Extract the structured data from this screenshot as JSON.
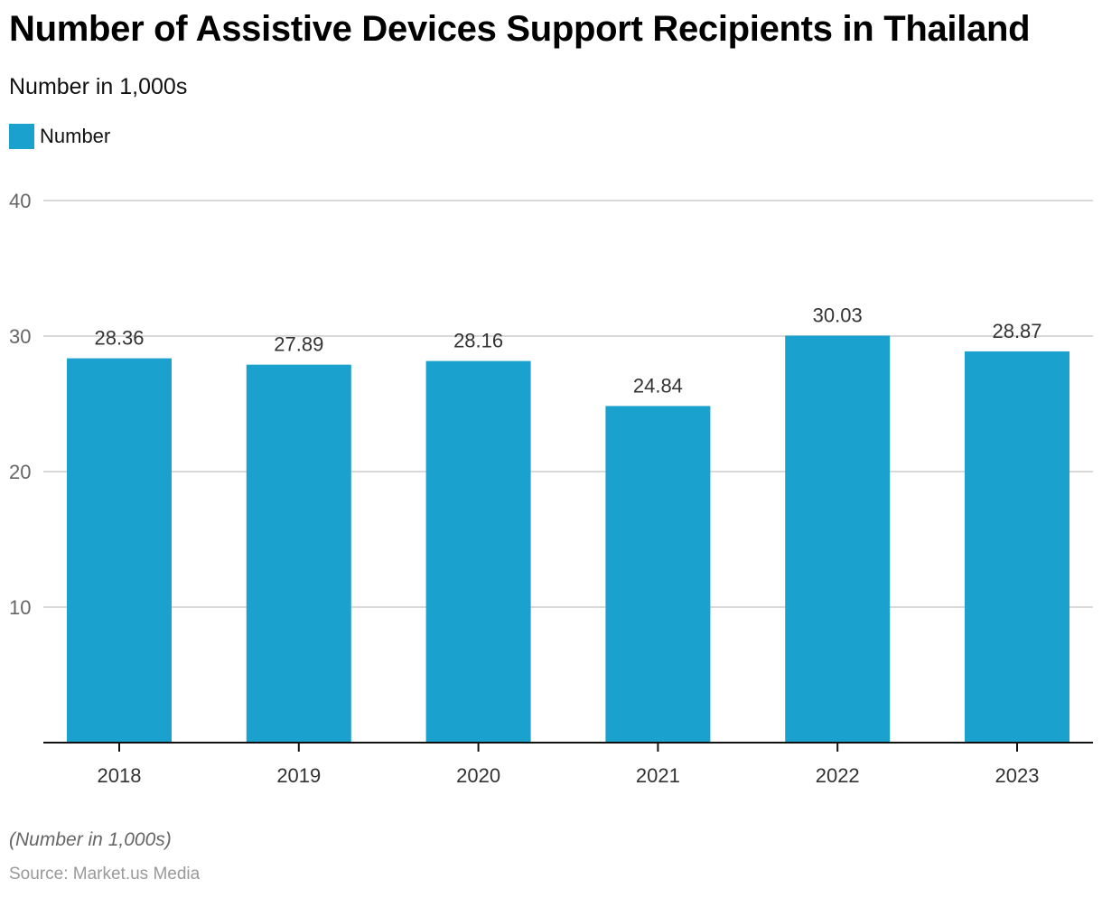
{
  "chart_data": {
    "type": "bar",
    "title": "Number of Assistive Devices Support Recipients in Thailand",
    "subtitle": "Number in 1,000s",
    "categories": [
      "2018",
      "2019",
      "2020",
      "2021",
      "2022",
      "2023"
    ],
    "series": [
      {
        "name": "Number",
        "color": "#1ba1cd",
        "values": [
          28.36,
          27.89,
          28.16,
          24.84,
          30.03,
          28.87
        ]
      }
    ],
    "data_labels": [
      "28.36",
      "27.89",
      "28.16",
      "24.84",
      "30.03",
      "28.87"
    ],
    "xlabel": "",
    "ylabel": "",
    "ylim": [
      0,
      40
    ],
    "yticks": [
      10,
      20,
      30,
      40
    ],
    "grid": true,
    "legend_position": "top-left",
    "note": "(Number in 1,000s)",
    "source": "Source: Market.us Media"
  }
}
